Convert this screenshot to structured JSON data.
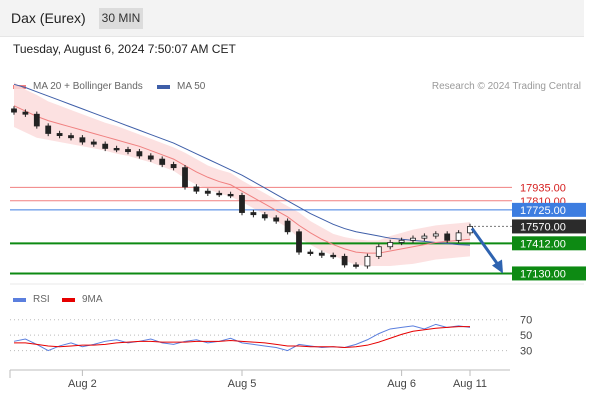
{
  "header": {
    "title": "Dax (Eurex)",
    "timeframe": "30 MIN",
    "timestamp": "Tuesday, August 6, 2024 7:50:07 AM CET"
  },
  "legend": {
    "bollinger_label": "MA 20 + Bollinger Bands",
    "ma50_label": "MA 50",
    "credit": "Research © 2024 Trading Central"
  },
  "colors": {
    "support": "#0d8a13",
    "resistance": "#f08080",
    "pivot": "#3d7de0",
    "price_tag": "#2b2b2b",
    "arrow": "#2e63b0",
    "bollinger_fill": "#fbdcdc",
    "ma20": "#f08080",
    "ma50": "#3e5ea8",
    "rsi": "#5b7fde",
    "rsi_ma": "#e60000"
  },
  "chart_data": [
    {
      "type": "candlestick",
      "x_labels": [
        "Aug 2",
        "Aug 5",
        "Aug 6",
        "Aug 11"
      ],
      "x_label_positions": [
        6,
        20,
        34,
        40
      ],
      "ylim": [
        17050,
        18800
      ],
      "levels": [
        {
          "value": 17935,
          "label": "17935.00",
          "kind": "resistance"
        },
        {
          "value": 17810,
          "label": "17810.00",
          "kind": "resistance"
        },
        {
          "value": 17725,
          "label": "17725.00",
          "kind": "pivot"
        },
        {
          "value": 17570,
          "label": "17570.00",
          "kind": "price"
        },
        {
          "value": 17412,
          "label": "17412.00",
          "kind": "support"
        },
        {
          "value": 17130,
          "label": "17130.00",
          "kind": "support"
        }
      ],
      "forecast_target": 17130,
      "close": [
        18640,
        18620,
        18510,
        18440,
        18420,
        18400,
        18360,
        18340,
        18300,
        18290,
        18270,
        18230,
        18200,
        18150,
        18120,
        17940,
        17900,
        17880,
        17870,
        17860,
        17700,
        17680,
        17650,
        17620,
        17520,
        17330,
        17320,
        17300,
        17290,
        17210,
        17200,
        17290,
        17380,
        17420,
        17440,
        17460,
        17480,
        17500,
        17440,
        17510,
        17570
      ],
      "ma20": [
        18700,
        18650,
        18600,
        18560,
        18530,
        18500,
        18470,
        18440,
        18410,
        18380,
        18350,
        18320,
        18280,
        18240,
        18200,
        18140,
        18080,
        18030,
        17990,
        17960,
        17900,
        17840,
        17780,
        17720,
        17660,
        17580,
        17510,
        17450,
        17400,
        17360,
        17330,
        17320,
        17320,
        17340,
        17360,
        17380,
        17400,
        17420,
        17430,
        17440,
        17450
      ],
      "ma50": [
        18900,
        18870,
        18830,
        18790,
        18750,
        18710,
        18670,
        18630,
        18590,
        18550,
        18510,
        18470,
        18430,
        18390,
        18350,
        18300,
        18250,
        18200,
        18150,
        18100,
        18050,
        17990,
        17930,
        17870,
        17810,
        17750,
        17690,
        17640,
        17590,
        17550,
        17520,
        17500,
        17480,
        17460,
        17450,
        17440,
        17430,
        17420,
        17410,
        17400,
        17395
      ],
      "bb_upper": [
        18920,
        18850,
        18800,
        18740,
        18700,
        18660,
        18620,
        18580,
        18540,
        18510,
        18470,
        18430,
        18390,
        18350,
        18310,
        18260,
        18200,
        18140,
        18100,
        18070,
        18000,
        17940,
        17880,
        17820,
        17760,
        17700,
        17620,
        17560,
        17500,
        17470,
        17450,
        17440,
        17440,
        17480,
        17510,
        17540,
        17560,
        17580,
        17590,
        17600,
        17610
      ],
      "bb_lower": [
        18500,
        18450,
        18400,
        18380,
        18360,
        18340,
        18320,
        18300,
        18280,
        18250,
        18230,
        18200,
        18170,
        18130,
        18090,
        18020,
        17960,
        17920,
        17880,
        17850,
        17800,
        17740,
        17680,
        17620,
        17560,
        17460,
        17400,
        17340,
        17300,
        17250,
        17210,
        17200,
        17200,
        17200,
        17210,
        17220,
        17240,
        17260,
        17270,
        17280,
        17290
      ]
    },
    {
      "type": "line",
      "legend": [
        "RSI",
        "9MA"
      ],
      "y_ticks": [
        30,
        50,
        70
      ],
      "ylim": [
        10,
        80
      ],
      "series": [
        {
          "name": "RSI",
          "values": [
            42,
            45,
            38,
            30,
            36,
            40,
            35,
            38,
            42,
            44,
            40,
            42,
            45,
            40,
            38,
            42,
            44,
            40,
            42,
            46,
            40,
            38,
            36,
            34,
            30,
            38,
            36,
            34,
            35,
            34,
            38,
            44,
            52,
            58,
            60,
            62,
            58,
            64,
            60,
            62,
            60
          ]
        },
        {
          "name": "9MA",
          "values": [
            40,
            40,
            38,
            36,
            35,
            36,
            37,
            37,
            38,
            40,
            41,
            42,
            42,
            41,
            41,
            41,
            42,
            42,
            42,
            43,
            42,
            41,
            40,
            38,
            36,
            36,
            35,
            35,
            35,
            34,
            35,
            37,
            41,
            46,
            51,
            55,
            57,
            59,
            60,
            61,
            61
          ]
        }
      ]
    }
  ]
}
